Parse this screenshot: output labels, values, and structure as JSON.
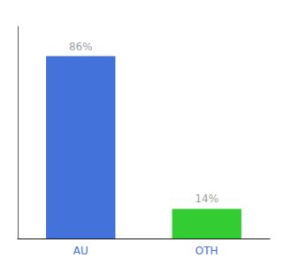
{
  "chart_data": {
    "type": "bar",
    "categories": [
      "AU",
      "OTH"
    ],
    "values": [
      86,
      14
    ],
    "colors": [
      "#4472db",
      "#33cc33"
    ],
    "value_labels": [
      "86%",
      "14%"
    ],
    "data_labels": true,
    "ylim": [
      0,
      100
    ],
    "grid": false,
    "tick_labels": "x"
  }
}
